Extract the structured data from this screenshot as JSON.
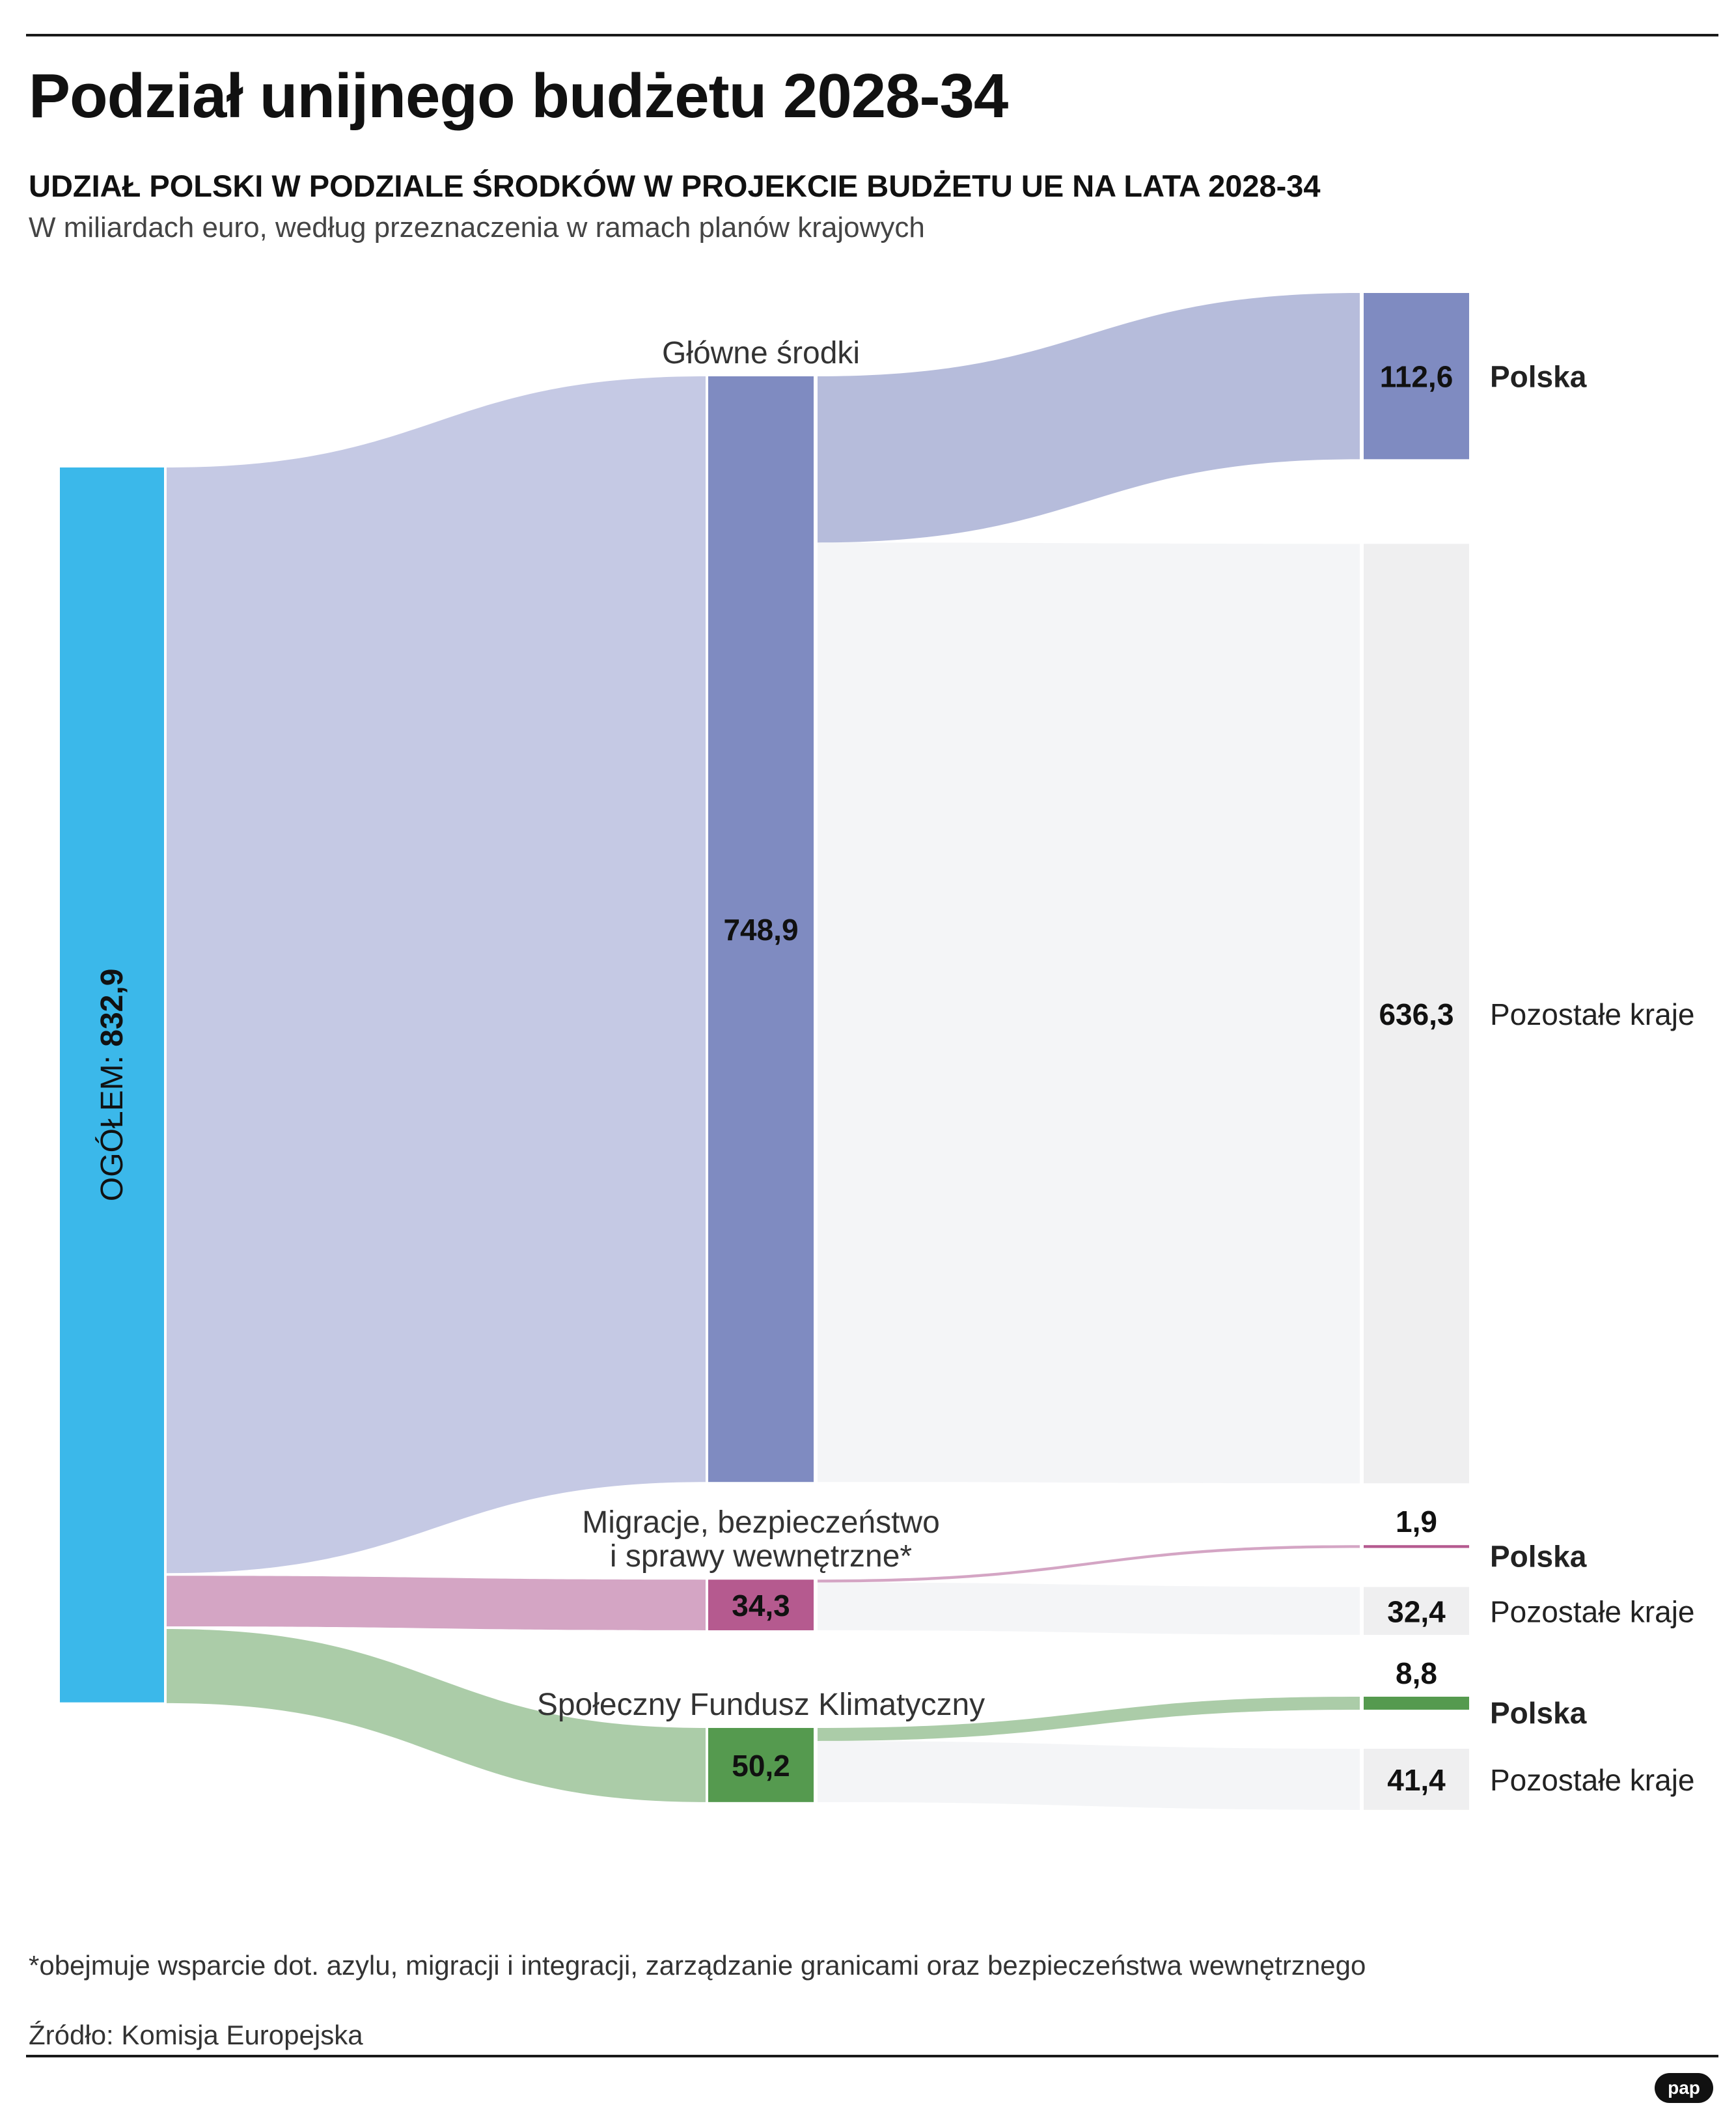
{
  "header": {
    "title": "Podział unijnego budżetu 2028-34",
    "subtitle": "UDZIAŁ POLSKI W PODZIALE ŚRODKÓW W PROJEKCIE BUDŻETU UE NA LATA 2028-34",
    "note": "W miliardach euro, według przeznaczenia w ramach planów krajowych"
  },
  "chart_data": {
    "type": "sankey",
    "unit": "mld euro",
    "total": {
      "label": "OGÓŁEM:",
      "value": 832.9,
      "value_label": "832,9",
      "color": "#3bb8ea"
    },
    "categories": [
      {
        "name": "Główne środki",
        "value": 748.9,
        "value_label": "748,9",
        "node_color": "#7f8bc1",
        "flow_color": "#c5c9e4",
        "out_color": "#b6bcdb",
        "targets": [
          {
            "name": "Polska",
            "value": 112.6,
            "value_label": "112,6",
            "color": "#7f8bc1",
            "bold": true
          },
          {
            "name": "Pozostałe kraje",
            "value": 636.3,
            "value_label": "636,3",
            "color": "#efeff0",
            "bold": false
          }
        ]
      },
      {
        "name": "Migracje, bezpieczeństwo i sprawy wewnętrzne*",
        "name_lines": [
          "Migracje, bezpieczeństwo",
          "i sprawy wewnętrzne*"
        ],
        "value": 34.3,
        "value_label": "34,3",
        "node_color": "#b55a8f",
        "flow_color": "#d4a5c4",
        "out_color": "#d4a5c4",
        "targets": [
          {
            "name": "Polska",
            "value": 1.9,
            "value_label": "1,9",
            "color": "#b55a8f",
            "bold": true
          },
          {
            "name": "Pozostałe kraje",
            "value": 32.4,
            "value_label": "32,4",
            "color": "#efeff0",
            "bold": false
          }
        ]
      },
      {
        "name": "Społeczny Fundusz Klimatyczny",
        "value": 50.2,
        "value_label": "50,2",
        "node_color": "#559a4f",
        "flow_color": "#abcca8",
        "out_color": "#abcca8",
        "targets": [
          {
            "name": "Polska",
            "value": 8.8,
            "value_label": "8,8",
            "color": "#559a4f",
            "bold": true
          },
          {
            "name": "Pozostałe kraje",
            "value": 41.4,
            "value_label": "41,4",
            "color": "#efeff0",
            "bold": false
          }
        ]
      }
    ]
  },
  "footer": {
    "footnote": "*obejmuje wsparcie dot. azylu, migracji i integracji, zarządzanie granicami oraz bezpieczeństwa wewnętrznego",
    "source": "Źródło: Komisja Europejska",
    "logo_text": "pap"
  }
}
